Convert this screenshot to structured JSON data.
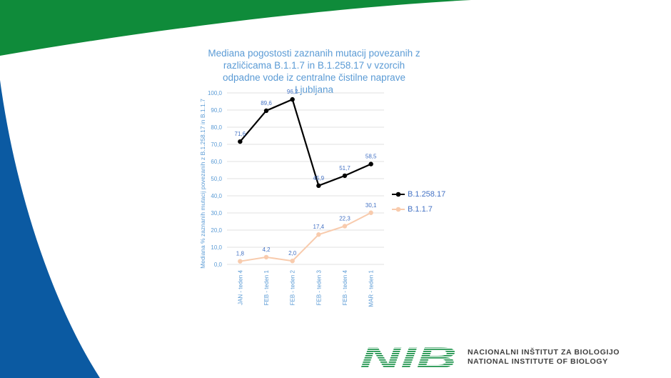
{
  "chart_data": {
    "type": "line",
    "title": "Mediana pogostosti zaznanih mutacij povezanih z različicama B.1.1.7 in B.1.258.17 v vzorcih odpadne vode iz centralne čistilne naprave Ljubljana",
    "xlabel": "",
    "ylabel": "Mediana % zaznanih mutacij povezanih z B.1.258.17 in B.1.1.7",
    "categories": [
      "JAN - teden 4",
      "FEB - teden 1",
      "FEB - teden 2",
      "FEB - teden 3",
      "FEB - teden 4",
      "MAR - teden 1"
    ],
    "yticks": [
      "0,0",
      "10,0",
      "20,0",
      "30,0",
      "40,0",
      "50,0",
      "60,0",
      "70,0",
      "80,0",
      "90,0",
      "100,0"
    ],
    "ylim": [
      0,
      100
    ],
    "grid": true,
    "legend_position": "right",
    "series": [
      {
        "name": "B.1.258.17",
        "values": [
          71.6,
          89.6,
          96.2,
          45.9,
          51.7,
          58.5
        ],
        "labels": [
          "71,6",
          "89,6",
          "96,2",
          "45,9",
          "51,7",
          "58,5"
        ],
        "color": "#000000"
      },
      {
        "name": "B.1.1.7",
        "values": [
          1.8,
          4.2,
          2.0,
          17.4,
          22.3,
          30.1
        ],
        "labels": [
          "1,8",
          "4,2",
          "2,0",
          "17,4",
          "22,3",
          "30,1"
        ],
        "color": "#f8cbad"
      }
    ]
  },
  "logo": {
    "text": "NIB",
    "color": "#0a8a3c"
  },
  "organization": {
    "name_sl": "NACIONALNI INŠTITUT ZA BIOLOGIJO",
    "name_en": "NATIONAL INSTITUTE OF BIOLOGY"
  },
  "colors": {
    "green": "#0f8b3a",
    "blue": "#0b5aa2",
    "title": "#5b9bd5"
  }
}
